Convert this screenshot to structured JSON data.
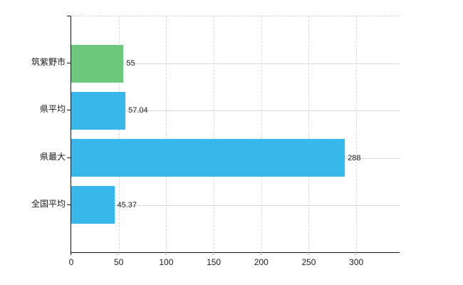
{
  "chart_data": {
    "type": "bar",
    "orientation": "horizontal",
    "title": "",
    "xlabel": "",
    "ylabel": "",
    "categories": [
      "筑紫野市",
      "県平均",
      "県最大",
      "全国平均"
    ],
    "values": [
      55,
      57.04,
      288,
      45.37
    ],
    "value_labels": [
      "55",
      "57.04",
      "288",
      "45.37"
    ],
    "bar_colors": [
      "#6cc87c",
      "#38b7eb",
      "#38b7eb",
      "#38b7eb"
    ],
    "x_ticks": [
      0,
      50,
      100,
      150,
      200,
      250,
      300
    ],
    "xlim": [
      0,
      345.6
    ],
    "grid": true,
    "legend": "none"
  },
  "colors": {
    "highlight_green": "#6cc87c",
    "series_blue": "#38b7eb",
    "gridline": "#dadada",
    "axis": "#111111",
    "text": "#1a1a1a",
    "background": "#ffffff"
  }
}
